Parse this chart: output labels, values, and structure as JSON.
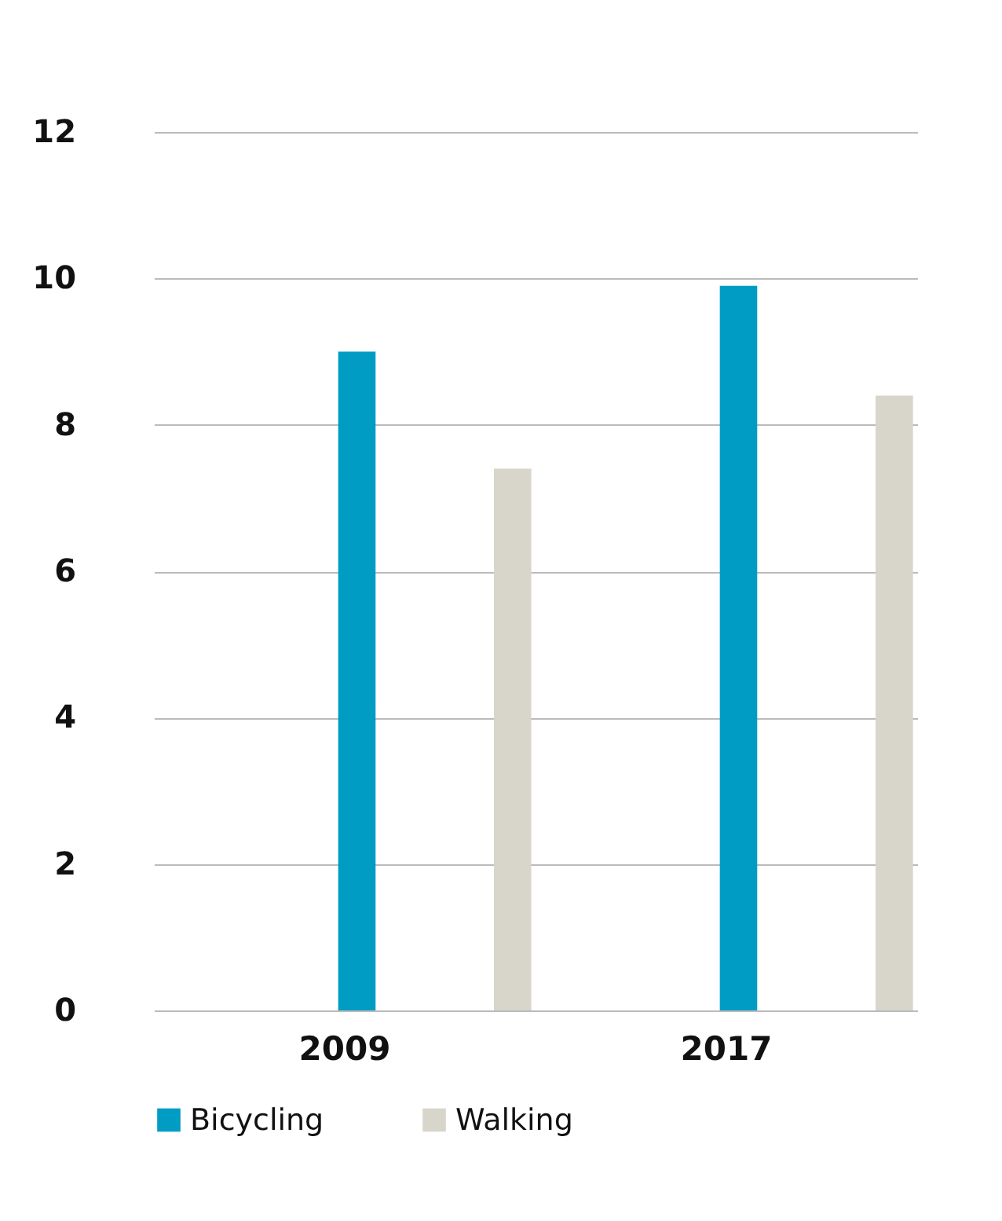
{
  "chart_data": {
    "type": "bar",
    "categories": [
      "2009",
      "2017"
    ],
    "series": [
      {
        "name": "Bicycling",
        "color": "#009cc4",
        "values": [
          9.0,
          9.9
        ]
      },
      {
        "name": "Walking",
        "color": "#d8d6ca",
        "values": [
          7.4,
          8.4
        ]
      }
    ],
    "ylim": [
      0,
      12
    ],
    "yticks": [
      0,
      2,
      4,
      6,
      8,
      10,
      12
    ],
    "grid": "y",
    "legend": "bottom"
  }
}
